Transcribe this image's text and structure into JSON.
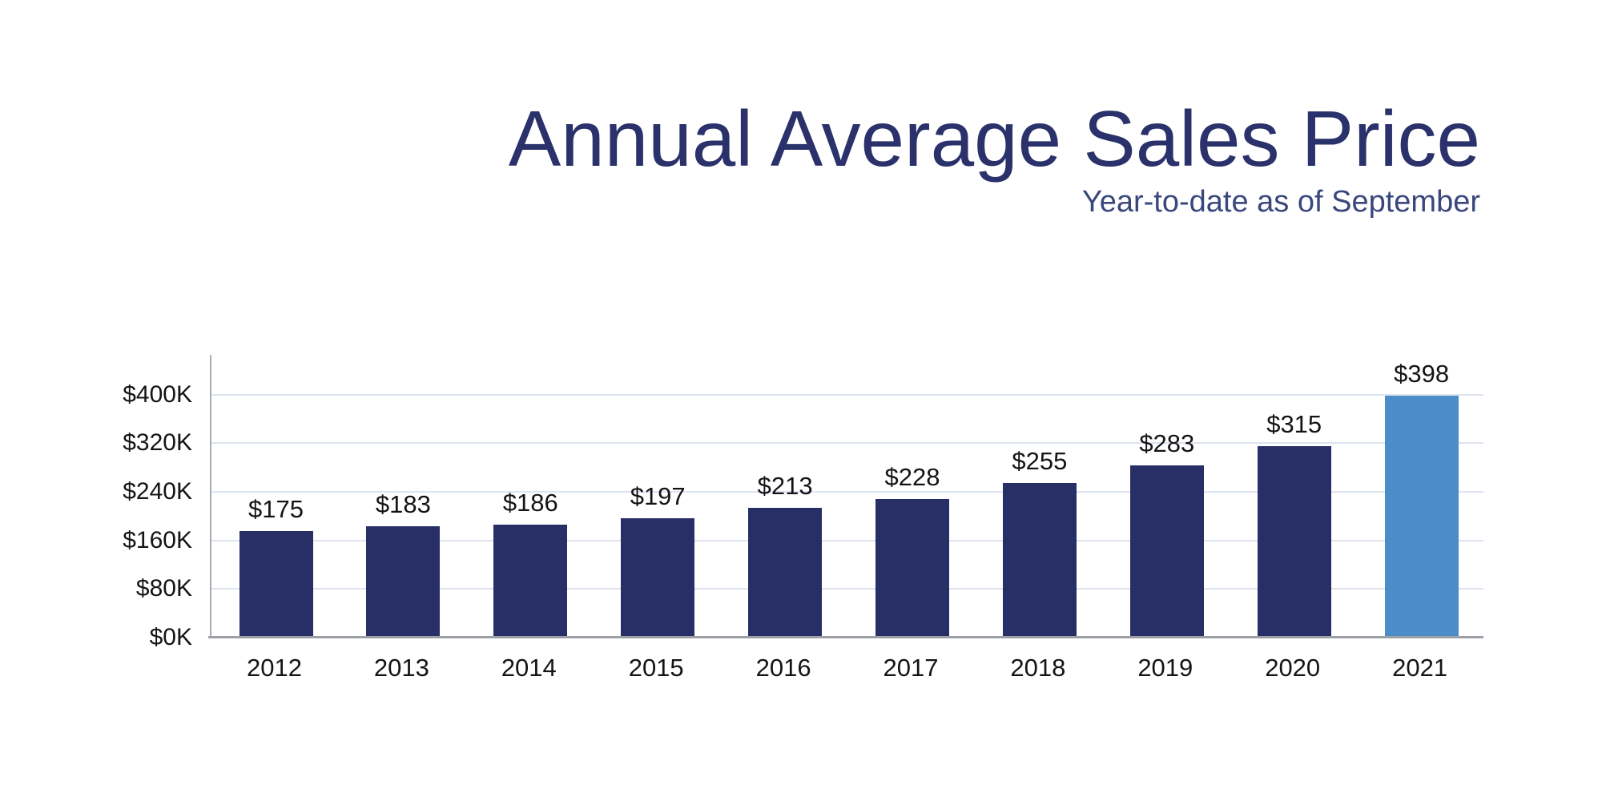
{
  "header": {
    "title": "Annual Average Sales Price",
    "subtitle": "Year-to-date as of September"
  },
  "chart_data": {
    "type": "bar",
    "title": "Annual Average Sales Price",
    "subtitle": "Year-to-date as of September",
    "categories": [
      "2012",
      "2013",
      "2014",
      "2015",
      "2016",
      "2017",
      "2018",
      "2019",
      "2020",
      "2021"
    ],
    "values": [
      175,
      183,
      186,
      197,
      213,
      228,
      255,
      283,
      315,
      398
    ],
    "value_labels": [
      "$175",
      "$183",
      "$186",
      "$197",
      "$213",
      "$228",
      "$255",
      "$283",
      "$315",
      "$398"
    ],
    "unit": "thousands of dollars",
    "xlabel": "",
    "ylabel": "",
    "y_ticks": [
      {
        "value": 0,
        "label": "$0K"
      },
      {
        "value": 80,
        "label": "$80K"
      },
      {
        "value": 160,
        "label": "$160K"
      },
      {
        "value": 240,
        "label": "$240K"
      },
      {
        "value": 320,
        "label": "$320K"
      },
      {
        "value": 400,
        "label": "$400K"
      }
    ],
    "ylim": [
      0,
      465
    ],
    "grid": true,
    "legend": "none",
    "colors": {
      "bar": "#282f66",
      "highlight_bar": "#4b8dc8",
      "title": "#2a316b",
      "subtitle": "#3a477d",
      "labels": "#141414",
      "gridline": "#dde4ef",
      "y_axis_line": "#a9acb2",
      "x_axis_line": "#9da0a6"
    },
    "highlight_index": 9
  }
}
